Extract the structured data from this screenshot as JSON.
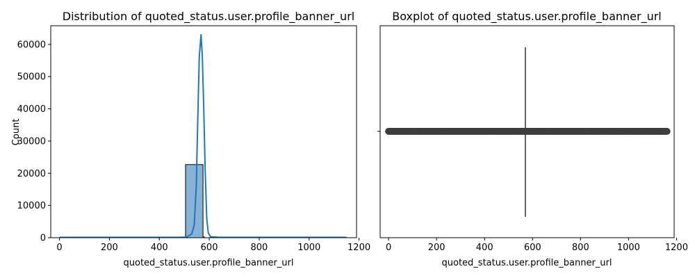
{
  "colors": {
    "hist_fill": "#86b3d6",
    "kde_line": "#1f77b4",
    "box_gray": "#3d3d3d",
    "axis": "#000000"
  },
  "chart_data": [
    {
      "type": "bar",
      "title": "Distribution of quoted_status.user.profile_banner_url",
      "xlabel": "quoted_status.user.profile_banner_url",
      "ylabel": "Count",
      "xlim": [
        -35,
        1190
      ],
      "ylim": [
        0,
        65800
      ],
      "x_ticks": [
        0,
        200,
        400,
        600,
        800,
        1000,
        1200
      ],
      "y_ticks": [
        0,
        10000,
        20000,
        30000,
        40000,
        50000,
        60000
      ],
      "grid": false,
      "bars": [
        {
          "x0": 505,
          "x1": 575,
          "value": 22700
        },
        {
          "x0": 575,
          "x1": 580,
          "value": 230
        }
      ],
      "baseline_range": [
        0,
        1160
      ],
      "baseline_value": 100,
      "kde": [
        [
          0,
          100
        ],
        [
          480,
          100
        ],
        [
          510,
          200
        ],
        [
          530,
          1200
        ],
        [
          540,
          4000
        ],
        [
          548,
          16000
        ],
        [
          555,
          40000
        ],
        [
          560,
          56000
        ],
        [
          567,
          63000
        ],
        [
          572,
          57000
        ],
        [
          578,
          40000
        ],
        [
          584,
          20000
        ],
        [
          590,
          6000
        ],
        [
          596,
          1500
        ],
        [
          605,
          300
        ],
        [
          640,
          100
        ],
        [
          1150,
          100
        ]
      ]
    },
    {
      "type": "box",
      "title": "Boxplot of quoted_status.user.profile_banner_url",
      "xlabel": "quoted_status.user.profile_banner_url",
      "xlim": [
        -35,
        1190
      ],
      "x_ticks": [
        0,
        200,
        400,
        600,
        800,
        1000,
        1200
      ],
      "median": 570,
      "q1": 570,
      "q3": 570,
      "whisker_low": 570,
      "whisker_high": 570,
      "outlier_range": [
        0,
        1160
      ]
    }
  ]
}
